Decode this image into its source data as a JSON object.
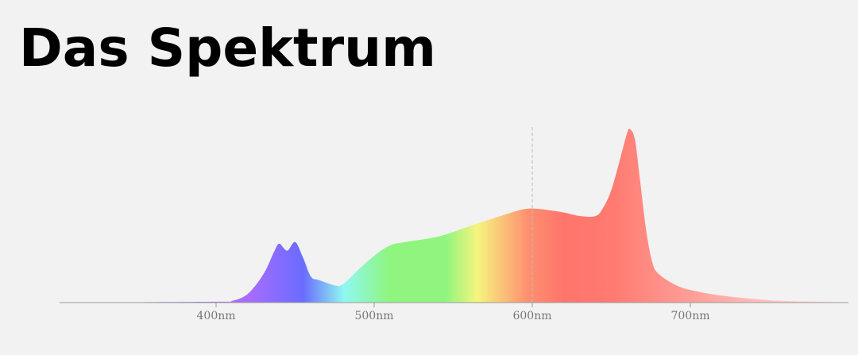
{
  "title": "Das Spektrum",
  "chart_data": {
    "type": "area",
    "title": "Das Spektrum",
    "xlabel": "",
    "ylabel": "",
    "xlim": [
      301,
      800
    ],
    "ylim": [
      0,
      1
    ],
    "grid": false,
    "x_ticks": [
      400,
      500,
      600,
      700
    ],
    "x_tick_labels": [
      "400nm",
      "500nm",
      "600nm",
      "700nm"
    ],
    "reference_line_x": 600,
    "x": [
      301,
      400,
      410,
      420,
      430,
      437,
      440,
      445,
      450,
      455,
      460,
      465,
      475,
      480,
      490,
      500,
      510,
      520,
      540,
      560,
      580,
      595,
      605,
      620,
      630,
      640,
      645,
      650,
      655,
      660,
      662,
      665,
      668,
      672,
      676,
      680,
      690,
      700,
      720,
      750,
      780,
      800
    ],
    "y": [
      0,
      0.005,
      0.01,
      0.05,
      0.165,
      0.3,
      0.34,
      0.3,
      0.35,
      0.26,
      0.15,
      0.13,
      0.1,
      0.105,
      0.19,
      0.27,
      0.33,
      0.35,
      0.38,
      0.44,
      0.5,
      0.54,
      0.54,
      0.52,
      0.5,
      0.5,
      0.55,
      0.65,
      0.81,
      0.98,
      1.0,
      0.94,
      0.72,
      0.42,
      0.23,
      0.165,
      0.105,
      0.073,
      0.04,
      0.014,
      0.005,
      0
    ],
    "fill_gradient": [
      {
        "nm": 420,
        "color": "#a86cff"
      },
      {
        "nm": 455,
        "color": "#6a6cff"
      },
      {
        "nm": 481,
        "color": "#8ff8f0"
      },
      {
        "nm": 510,
        "color": "#8ff57e"
      },
      {
        "nm": 545,
        "color": "#8ff57e"
      },
      {
        "nm": 565,
        "color": "#f5f57e"
      },
      {
        "nm": 597,
        "color": "#ff9070"
      },
      {
        "nm": 620,
        "color": "#ff756c"
      },
      {
        "nm": 650,
        "color": "#ff7a70"
      },
      {
        "nm": 680,
        "color": "#ff8f88"
      },
      {
        "nm": 770,
        "color": "#ffd0cc"
      }
    ]
  }
}
